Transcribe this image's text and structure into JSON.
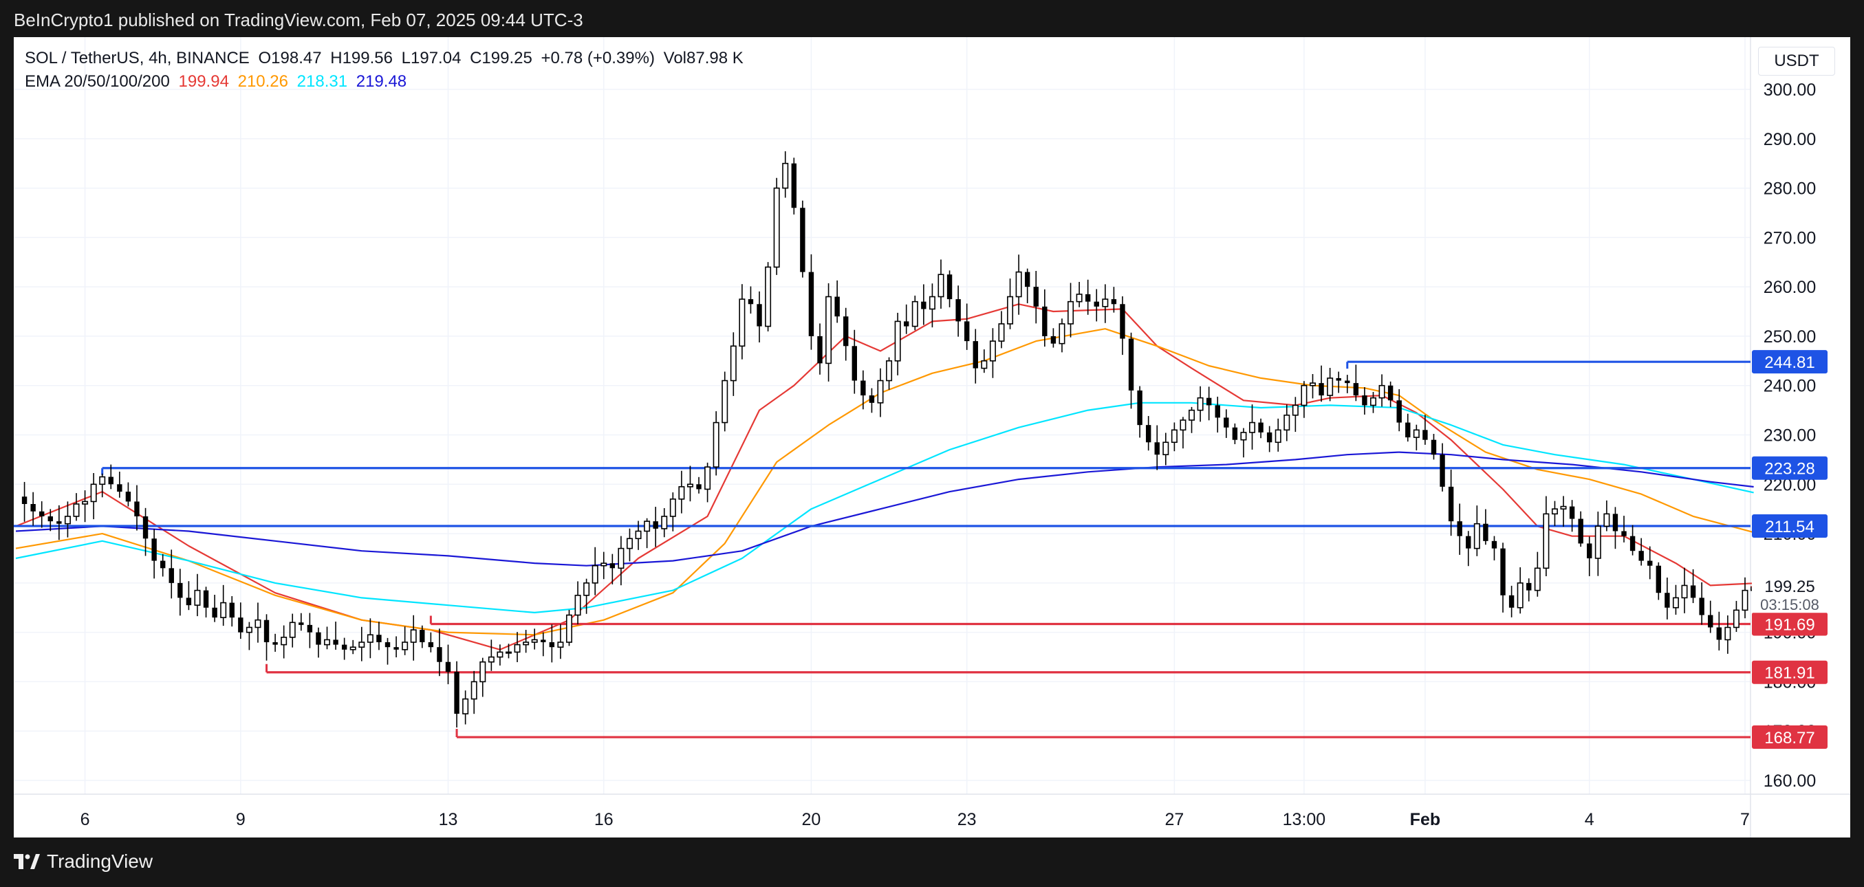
{
  "header": {
    "published": "BeInCrypto1 published on TradingView.com, Feb 07, 2025 09:44 UTC-3"
  },
  "legend": {
    "symbol": "SOL / TetherUS, 4h, BINANCE",
    "open": "O198.47",
    "high": "H199.56",
    "low": "L197.04",
    "close": "C199.25",
    "change": "+0.78 (+0.39%)",
    "volume": "Vol87.98 K",
    "ema_label": "EMA 20/50/100/200",
    "ema20": "199.94",
    "ema50": "210.26",
    "ema100": "218.31",
    "ema200": "219.48"
  },
  "currency_button": "USDT",
  "footer": {
    "brand": "TradingView"
  },
  "colors": {
    "ema20": "#e53935",
    "ema50": "#ff9800",
    "ema100": "#00e5ff",
    "ema200": "#1a17d6",
    "resistance": "#1e53e5",
    "support": "#e03342",
    "candle": "#000000"
  },
  "chart_data": {
    "type": "candlestick",
    "title": "SOL / TetherUS, 4h, BINANCE",
    "ylim": [
      155,
      302
    ],
    "y_ticks": [
      "300.00",
      "290.00",
      "280.00",
      "270.00",
      "260.00",
      "250.00",
      "240.00",
      "230.00",
      "220.00",
      "210.00",
      "200.00",
      "190.00",
      "180.00",
      "170.00",
      "160.00"
    ],
    "x_ticks": [
      {
        "label": "6",
        "index": 8
      },
      {
        "label": "9",
        "index": 26
      },
      {
        "label": "13",
        "index": 50
      },
      {
        "label": "16",
        "index": 68
      },
      {
        "label": "20",
        "index": 92
      },
      {
        "label": "23",
        "index": 110
      },
      {
        "label": "27",
        "index": 134
      },
      {
        "label": "13:00",
        "index": 149
      },
      {
        "label": "Feb",
        "index": 163
      },
      {
        "label": "4",
        "index": 182
      },
      {
        "label": "7",
        "index": 200
      }
    ],
    "current_price": {
      "value": "199.25",
      "countdown": "03:15:08"
    },
    "levels": [
      {
        "label": "244.81",
        "value": 244.81,
        "kind": "resistance",
        "start_index": 154
      },
      {
        "label": "223.28",
        "value": 223.28,
        "kind": "resistance",
        "start_index": 10
      },
      {
        "label": "211.54",
        "value": 211.54,
        "kind": "resistance",
        "start_index": 0
      },
      {
        "label": "191.69",
        "value": 191.69,
        "kind": "support",
        "start_index": 48
      },
      {
        "label": "181.91",
        "value": 181.91,
        "kind": "support",
        "start_index": 29
      },
      {
        "label": "168.77",
        "value": 168.77,
        "kind": "support",
        "start_index": 51
      }
    ],
    "candle_anchors": [
      [
        0,
        217.5
      ],
      [
        1,
        216.0
      ],
      [
        2,
        214.5
      ],
      [
        3,
        213.5
      ],
      [
        4,
        212.5
      ],
      [
        5,
        212.0
      ],
      [
        6,
        213.5
      ],
      [
        7,
        216.0
      ],
      [
        8,
        216.5
      ],
      [
        9,
        220.0
      ],
      [
        10,
        221.5
      ],
      [
        11,
        220.0
      ],
      [
        12,
        218.5
      ],
      [
        13,
        216.5
      ],
      [
        14,
        213.5
      ],
      [
        15,
        209.0
      ],
      [
        16,
        204.5
      ],
      [
        17,
        203.0
      ],
      [
        18,
        200.0
      ],
      [
        19,
        197.0
      ],
      [
        20,
        195.5
      ],
      [
        21,
        198.5
      ],
      [
        22,
        195.0
      ],
      [
        23,
        193.0
      ],
      [
        24,
        196.0
      ],
      [
        25,
        193.0
      ],
      [
        26,
        190.0
      ],
      [
        27,
        191.0
      ],
      [
        28,
        192.5
      ],
      [
        29,
        188.0
      ],
      [
        30,
        187.5
      ],
      [
        31,
        189.0
      ],
      [
        32,
        192.0
      ],
      [
        33,
        191.5
      ],
      [
        34,
        190.0
      ],
      [
        35,
        187.5
      ],
      [
        36,
        188.5
      ],
      [
        37,
        187.5
      ],
      [
        38,
        186.5
      ],
      [
        39,
        187.0
      ],
      [
        40,
        188.0
      ],
      [
        41,
        189.5
      ],
      [
        42,
        188.0
      ],
      [
        43,
        187.0
      ],
      [
        44,
        186.5
      ],
      [
        45,
        188.0
      ],
      [
        46,
        190.5
      ],
      [
        47,
        188.0
      ],
      [
        48,
        187.0
      ],
      [
        49,
        184.0
      ],
      [
        50,
        182.0
      ],
      [
        51,
        173.5
      ],
      [
        52,
        176.5
      ],
      [
        53,
        180.0
      ],
      [
        54,
        184.0
      ],
      [
        55,
        185.0
      ],
      [
        56,
        186.0
      ],
      [
        57,
        186.0
      ],
      [
        58,
        187.5
      ],
      [
        59,
        188.0
      ],
      [
        60,
        188.5
      ],
      [
        61,
        188.0
      ],
      [
        62,
        187.0
      ],
      [
        63,
        188.0
      ],
      [
        64,
        193.5
      ],
      [
        65,
        197.5
      ],
      [
        66,
        200.0
      ],
      [
        67,
        203.5
      ],
      [
        68,
        204.0
      ],
      [
        69,
        203.0
      ],
      [
        70,
        207.0
      ],
      [
        71,
        209.0
      ],
      [
        72,
        210.5
      ],
      [
        73,
        212.5
      ],
      [
        74,
        211.0
      ],
      [
        75,
        213.5
      ],
      [
        76,
        217.0
      ],
      [
        77,
        219.5
      ],
      [
        78,
        220.0
      ],
      [
        79,
        219.0
      ],
      [
        80,
        223.5
      ],
      [
        81,
        232.5
      ],
      [
        82,
        241.0
      ],
      [
        83,
        248.0
      ],
      [
        84,
        257.5
      ],
      [
        85,
        256.5
      ],
      [
        86,
        252.0
      ],
      [
        87,
        264.0
      ],
      [
        88,
        280.0
      ],
      [
        89,
        285.0
      ],
      [
        90,
        276.0
      ],
      [
        91,
        263.0
      ],
      [
        92,
        250.0
      ],
      [
        93,
        244.5
      ],
      [
        94,
        258.0
      ],
      [
        95,
        254.0
      ],
      [
        96,
        248.0
      ],
      [
        97,
        241.0
      ],
      [
        98,
        238.0
      ],
      [
        99,
        236.5
      ],
      [
        100,
        241.0
      ],
      [
        101,
        245.0
      ],
      [
        102,
        253.0
      ],
      [
        103,
        252.0
      ],
      [
        104,
        257.0
      ],
      [
        105,
        255.5
      ],
      [
        106,
        258.0
      ],
      [
        107,
        262.5
      ],
      [
        108,
        257.5
      ],
      [
        109,
        253.0
      ],
      [
        110,
        249.0
      ],
      [
        111,
        243.5
      ],
      [
        112,
        245.0
      ],
      [
        113,
        249.0
      ],
      [
        114,
        252.5
      ],
      [
        115,
        258.0
      ],
      [
        116,
        263.0
      ],
      [
        117,
        260.0
      ],
      [
        118,
        256.0
      ],
      [
        119,
        250.0
      ],
      [
        120,
        248.5
      ],
      [
        121,
        252.5
      ],
      [
        122,
        257.0
      ],
      [
        123,
        258.5
      ],
      [
        124,
        257.0
      ],
      [
        125,
        256.0
      ],
      [
        126,
        257.5
      ],
      [
        127,
        256.5
      ],
      [
        128,
        249.5
      ],
      [
        129,
        239.0
      ],
      [
        130,
        232.0
      ],
      [
        131,
        228.5
      ],
      [
        132,
        226.0
      ],
      [
        133,
        228.5
      ],
      [
        134,
        231.0
      ],
      [
        135,
        233.0
      ],
      [
        136,
        235.0
      ],
      [
        137,
        237.5
      ],
      [
        138,
        236.0
      ],
      [
        139,
        233.5
      ],
      [
        140,
        231.5
      ],
      [
        141,
        229.0
      ],
      [
        142,
        230.5
      ],
      [
        143,
        232.5
      ],
      [
        144,
        230.5
      ],
      [
        145,
        228.5
      ],
      [
        146,
        231.0
      ],
      [
        147,
        234.0
      ],
      [
        148,
        236.0
      ],
      [
        149,
        240.0
      ],
      [
        150,
        240.5
      ],
      [
        151,
        238.0
      ],
      [
        152,
        241.5
      ],
      [
        153,
        241.0
      ],
      [
        154,
        240.5
      ],
      [
        155,
        238.0
      ],
      [
        156,
        236.0
      ],
      [
        157,
        237.5
      ],
      [
        158,
        240.0
      ],
      [
        159,
        237.0
      ],
      [
        160,
        232.5
      ],
      [
        161,
        229.5
      ],
      [
        162,
        231.0
      ],
      [
        163,
        229.0
      ],
      [
        164,
        226.0
      ],
      [
        165,
        219.5
      ],
      [
        166,
        212.5
      ],
      [
        167,
        209.5
      ],
      [
        168,
        207.0
      ],
      [
        169,
        212.0
      ],
      [
        170,
        208.5
      ],
      [
        171,
        207.0
      ],
      [
        172,
        197.5
      ],
      [
        173,
        195.0
      ],
      [
        174,
        200.0
      ],
      [
        175,
        198.5
      ],
      [
        176,
        203.0
      ],
      [
        177,
        214.0
      ],
      [
        178,
        215.0
      ],
      [
        179,
        215.5
      ],
      [
        180,
        213.0
      ],
      [
        181,
        208.0
      ],
      [
        182,
        205.0
      ],
      [
        183,
        211.5
      ],
      [
        184,
        214.0
      ],
      [
        185,
        210.5
      ],
      [
        186,
        209.5
      ],
      [
        187,
        206.5
      ],
      [
        188,
        204.5
      ],
      [
        189,
        203.5
      ],
      [
        190,
        198.0
      ],
      [
        191,
        195.0
      ],
      [
        192,
        197.0
      ],
      [
        193,
        199.5
      ],
      [
        194,
        197.0
      ],
      [
        195,
        193.5
      ],
      [
        196,
        191.0
      ],
      [
        197,
        188.5
      ],
      [
        198,
        191.0
      ],
      [
        199,
        194.5
      ],
      [
        200,
        198.5
      ],
      [
        201,
        199.25
      ]
    ],
    "ema_series": [
      {
        "name": "EMA 20",
        "value": "199.94",
        "points": [
          [
            0,
            211.5
          ],
          [
            10,
            218.5
          ],
          [
            20,
            207.5
          ],
          [
            30,
            198.0
          ],
          [
            40,
            192.5
          ],
          [
            48,
            190.5
          ],
          [
            56,
            186.5
          ],
          [
            64,
            192.5
          ],
          [
            72,
            205.0
          ],
          [
            80,
            213.5
          ],
          [
            86,
            235.0
          ],
          [
            90,
            240.0
          ],
          [
            96,
            250.0
          ],
          [
            100,
            247.0
          ],
          [
            106,
            253.0
          ],
          [
            110,
            253.5
          ],
          [
            116,
            256.5
          ],
          [
            120,
            255.0
          ],
          [
            128,
            255.5
          ],
          [
            132,
            248.0
          ],
          [
            136,
            243.5
          ],
          [
            142,
            237.0
          ],
          [
            148,
            236.0
          ],
          [
            152,
            237.5
          ],
          [
            158,
            238.0
          ],
          [
            162,
            234.5
          ],
          [
            166,
            229.0
          ],
          [
            172,
            219.0
          ],
          [
            176,
            211.5
          ],
          [
            180,
            209.5
          ],
          [
            186,
            209.5
          ],
          [
            192,
            204.0
          ],
          [
            196,
            199.5
          ],
          [
            201,
            199.94
          ]
        ]
      },
      {
        "name": "EMA 50",
        "value": "210.26",
        "points": [
          [
            0,
            207.0
          ],
          [
            10,
            210.0
          ],
          [
            20,
            204.5
          ],
          [
            30,
            197.5
          ],
          [
            40,
            192.5
          ],
          [
            50,
            190.0
          ],
          [
            60,
            189.5
          ],
          [
            68,
            192.5
          ],
          [
            76,
            198.0
          ],
          [
            82,
            208.0
          ],
          [
            88,
            224.5
          ],
          [
            94,
            232.0
          ],
          [
            100,
            238.5
          ],
          [
            106,
            242.5
          ],
          [
            112,
            245.0
          ],
          [
            118,
            249.0
          ],
          [
            126,
            251.5
          ],
          [
            132,
            248.0
          ],
          [
            138,
            244.0
          ],
          [
            144,
            241.5
          ],
          [
            150,
            240.0
          ],
          [
            156,
            239.5
          ],
          [
            160,
            238.0
          ],
          [
            164,
            233.0
          ],
          [
            170,
            226.5
          ],
          [
            176,
            223.0
          ],
          [
            182,
            221.0
          ],
          [
            188,
            218.0
          ],
          [
            194,
            213.5
          ],
          [
            201,
            210.26
          ]
        ]
      },
      {
        "name": "EMA 100",
        "value": "218.31",
        "points": [
          [
            0,
            205.0
          ],
          [
            10,
            208.5
          ],
          [
            20,
            204.5
          ],
          [
            30,
            200.0
          ],
          [
            40,
            197.0
          ],
          [
            50,
            195.5
          ],
          [
            60,
            194.0
          ],
          [
            66,
            195.0
          ],
          [
            76,
            198.5
          ],
          [
            84,
            205.0
          ],
          [
            92,
            215.0
          ],
          [
            100,
            221.0
          ],
          [
            108,
            227.0
          ],
          [
            116,
            231.5
          ],
          [
            124,
            235.0
          ],
          [
            130,
            236.5
          ],
          [
            136,
            236.5
          ],
          [
            144,
            235.5
          ],
          [
            152,
            236.0
          ],
          [
            160,
            235.5
          ],
          [
            166,
            232.0
          ],
          [
            172,
            228.0
          ],
          [
            178,
            226.0
          ],
          [
            186,
            224.0
          ],
          [
            194,
            221.0
          ],
          [
            201,
            218.31
          ]
        ]
      },
      {
        "name": "EMA 200",
        "value": "219.48",
        "points": [
          [
            0,
            210.5
          ],
          [
            10,
            211.5
          ],
          [
            20,
            210.5
          ],
          [
            30,
            208.5
          ],
          [
            40,
            206.5
          ],
          [
            50,
            205.5
          ],
          [
            60,
            204.0
          ],
          [
            66,
            203.5
          ],
          [
            76,
            204.5
          ],
          [
            84,
            206.5
          ],
          [
            92,
            211.5
          ],
          [
            100,
            215.0
          ],
          [
            108,
            218.5
          ],
          [
            116,
            221.0
          ],
          [
            124,
            222.5
          ],
          [
            132,
            223.5
          ],
          [
            140,
            224.0
          ],
          [
            148,
            225.0
          ],
          [
            154,
            226.0
          ],
          [
            160,
            226.5
          ],
          [
            166,
            226.0
          ],
          [
            172,
            225.0
          ],
          [
            180,
            224.0
          ],
          [
            188,
            222.5
          ],
          [
            196,
            220.5
          ],
          [
            201,
            219.48
          ]
        ]
      }
    ]
  }
}
